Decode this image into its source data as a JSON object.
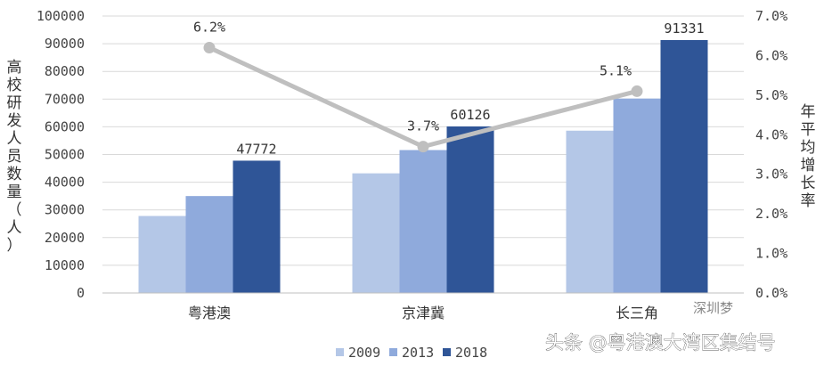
{
  "chart_data": {
    "type": "bar",
    "title": "",
    "categories": [
      "粤港澳",
      "京津冀",
      "长三角"
    ],
    "series": [
      {
        "name": "2009",
        "color": "#b4c7e7",
        "values": [
          27800,
          43200,
          58600
        ]
      },
      {
        "name": "2013",
        "color": "#8faadc",
        "values": [
          35000,
          51600,
          70200
        ]
      },
      {
        "name": "2018",
        "color": "#2f5597",
        "values": [
          47772,
          60126,
          91331
        ]
      }
    ],
    "bar_labels": [
      "47772",
      "60126",
      "91331"
    ],
    "line": {
      "color": "#bfbfbf",
      "values": [
        0.062,
        0.037,
        0.051
      ],
      "labels": [
        "6.2%",
        "3.7%",
        "5.1%"
      ]
    },
    "ylabel_left": "高校研发人员数量（人）",
    "ylabel_right": "年平均增长率",
    "ylim_left": [
      0,
      100000
    ],
    "ylim_right": [
      0,
      0.07
    ],
    "left_ticks": [
      "0",
      "10000",
      "20000",
      "30000",
      "40000",
      "50000",
      "60000",
      "70000",
      "80000",
      "90000",
      "100000"
    ],
    "right_ticks": [
      "0.0%",
      "1.0%",
      "2.0%",
      "3.0%",
      "4.0%",
      "5.0%",
      "6.0%",
      "7.0%"
    ],
    "grid": true,
    "legend": {
      "position": "bottom",
      "entries": [
        "2009",
        "2013",
        "2018"
      ]
    }
  },
  "watermark": {
    "brand": "深圳梦",
    "text": "头条 @粤港澳大湾区集结号"
  }
}
